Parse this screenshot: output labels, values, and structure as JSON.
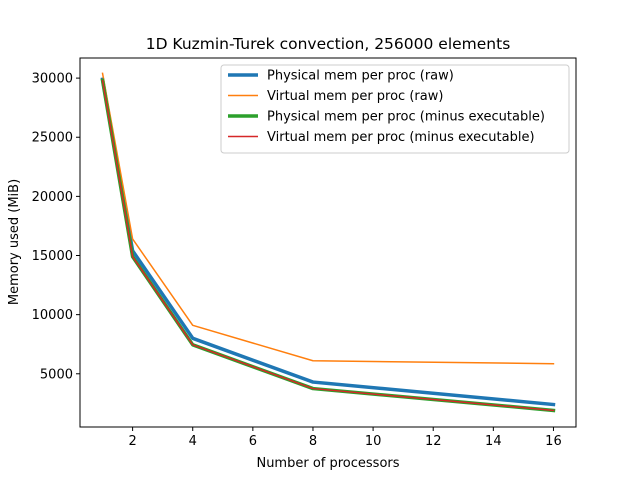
{
  "chart_data": {
    "type": "line",
    "title": "1D Kuzmin-Turek convection, 256000 elements",
    "xlabel": "Number of processors",
    "ylabel": "Memory used (MiB)",
    "x": [
      1,
      2,
      4,
      8,
      16
    ],
    "xlim": [
      0.25,
      16.75
    ],
    "ylim": [
      500,
      31700
    ],
    "xticks": [
      2,
      4,
      6,
      8,
      10,
      12,
      14,
      16
    ],
    "yticks": [
      5000,
      10000,
      15000,
      20000,
      25000,
      30000
    ],
    "legend_position": "upper right",
    "grid": false,
    "series": [
      {
        "name": "Physical mem per proc (raw)",
        "color": "#1f77b4",
        "linewidth": 3.5,
        "values": [
          29900,
          15400,
          8000,
          4300,
          2400
        ]
      },
      {
        "name": "Virtual mem per proc (raw)",
        "color": "#ff7f0e",
        "linewidth": 1.5,
        "values": [
          30400,
          16400,
          9100,
          6100,
          5850
        ]
      },
      {
        "name": "Physical mem per proc (minus executable)",
        "color": "#2ca02c",
        "linewidth": 3.5,
        "values": [
          29800,
          14900,
          7450,
          3750,
          1900
        ]
      },
      {
        "name": "Virtual mem per proc (minus executable)",
        "color": "#d62728",
        "linewidth": 1.5,
        "values": [
          29800,
          14900,
          7450,
          3750,
          1900
        ]
      }
    ]
  }
}
